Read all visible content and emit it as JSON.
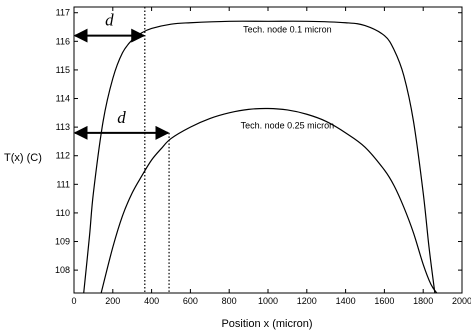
{
  "chart_data": {
    "type": "line",
    "xlabel": "Position x (micron)",
    "ylabel": "T(x) (C)",
    "xlim": [
      0,
      2000
    ],
    "ylim": [
      107.2,
      117.2
    ],
    "x_ticks": [
      0,
      200,
      400,
      600,
      800,
      1000,
      1200,
      1400,
      1600,
      1800,
      2000
    ],
    "y_ticks": [
      108,
      109,
      110,
      111,
      112,
      113,
      114,
      115,
      116,
      117
    ],
    "grid": false,
    "series": [
      {
        "name": "Tech. node 0.1 micron",
        "x": [
          50,
          80,
          100,
          150,
          200,
          250,
          300,
          350,
          400,
          500,
          600,
          800,
          1000,
          1200,
          1400,
          1500,
          1600,
          1650,
          1700,
          1750,
          1800,
          1830,
          1860
        ],
        "y": [
          107.2,
          109.2,
          110.7,
          113.2,
          114.7,
          115.6,
          116.05,
          116.3,
          116.45,
          116.6,
          116.65,
          116.7,
          116.7,
          116.7,
          116.65,
          116.55,
          116.2,
          115.7,
          114.8,
          113.2,
          110.7,
          108.8,
          107.2
        ]
      },
      {
        "name": "Tech. node 0.25 micron",
        "x": [
          140,
          200,
          250,
          300,
          350,
          400,
          450,
          500,
          600,
          700,
          800,
          900,
          1000,
          1100,
          1200,
          1300,
          1400,
          1500,
          1600,
          1650,
          1700,
          1750,
          1800,
          1840,
          1870
        ],
        "y": [
          107.2,
          108.8,
          109.9,
          110.7,
          111.3,
          111.85,
          112.25,
          112.6,
          113.0,
          113.3,
          113.5,
          113.62,
          113.65,
          113.6,
          113.45,
          113.2,
          112.8,
          112.3,
          111.5,
          110.95,
          110.2,
          109.3,
          108.2,
          107.5,
          107.2
        ]
      }
    ],
    "annotations": [
      {
        "text": "Tech. node 0.1 micron",
        "x": 1100,
        "y": 116.3
      },
      {
        "text": "Tech. node 0.25 micron",
        "x": 1100,
        "y": 112.95
      }
    ],
    "markers": [
      {
        "label": "d",
        "x_from": 0,
        "x_to": 365,
        "arrow_y": 116.2,
        "label_y": 116.55,
        "line_x": 365,
        "line_y_top": 117.2
      },
      {
        "label": "d",
        "x_from": 0,
        "x_to": 490,
        "arrow_y": 112.8,
        "label_y": 113.15,
        "line_x": 490,
        "line_y_top": 112.8
      }
    ]
  }
}
